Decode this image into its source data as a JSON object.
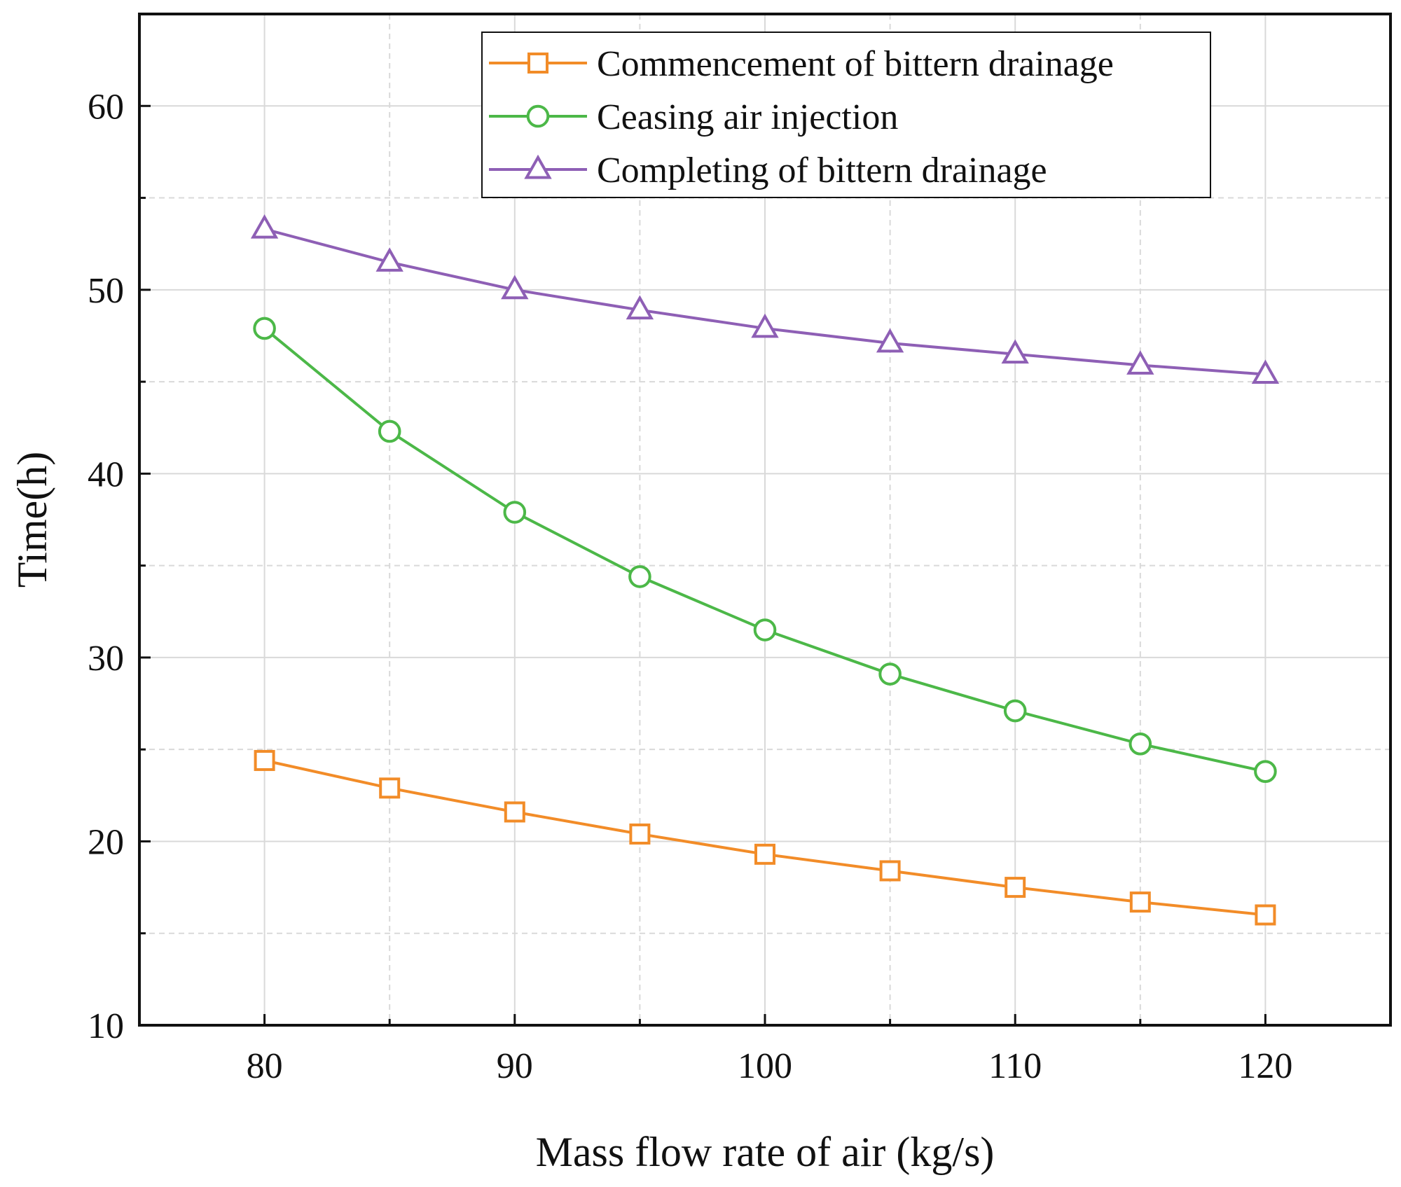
{
  "chart_data": {
    "type": "line",
    "title": "",
    "xlabel": "Mass flow rate of air (kg/s)",
    "ylabel": "Time(h)",
    "xlim": [
      75,
      125
    ],
    "ylim": [
      10,
      65
    ],
    "xticks": [
      80,
      90,
      100,
      110,
      120
    ],
    "yticks": [
      10,
      20,
      30,
      40,
      50,
      60
    ],
    "grid": true,
    "legend_position": "top-center",
    "x": [
      80,
      85,
      90,
      95,
      100,
      105,
      110,
      115,
      120
    ],
    "series": [
      {
        "name": "Commencement of bittern drainage",
        "color": "#f28c28",
        "marker": "square",
        "values": [
          24.4,
          22.9,
          21.6,
          20.4,
          19.3,
          18.4,
          17.5,
          16.7,
          16.0
        ]
      },
      {
        "name": "Ceasing air injection",
        "color": "#4cb848",
        "marker": "circle",
        "values": [
          47.9,
          42.3,
          37.9,
          34.4,
          31.5,
          29.1,
          27.1,
          25.3,
          23.8
        ]
      },
      {
        "name": "Completing of bittern drainage",
        "color": "#8e5fb5",
        "marker": "triangle",
        "values": [
          53.3,
          51.5,
          50.0,
          48.9,
          47.9,
          47.1,
          46.5,
          45.9,
          45.4
        ]
      }
    ]
  }
}
